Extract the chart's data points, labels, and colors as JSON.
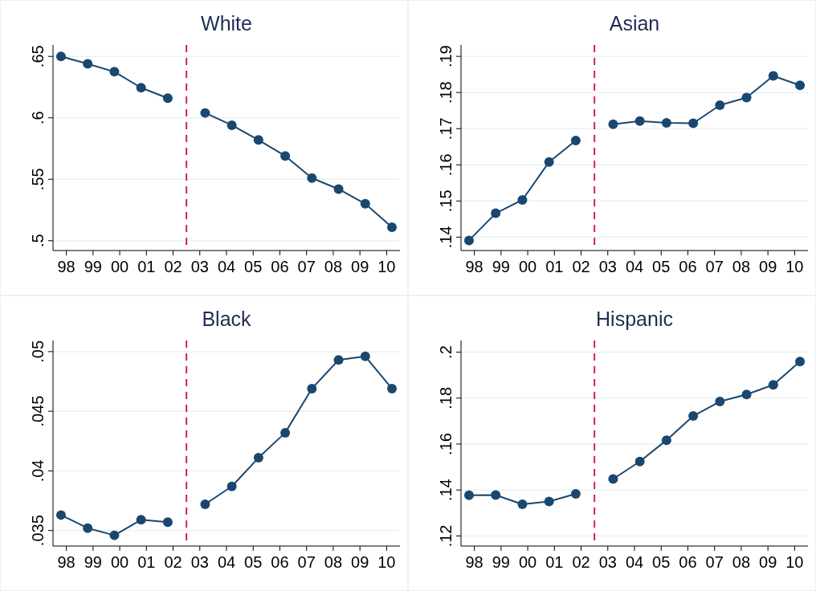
{
  "chart_data": [
    {
      "type": "line",
      "title": "White",
      "xlim": [
        1997.5,
        2010.5
      ],
      "xticks": [
        {
          "value": 1998,
          "label": "98"
        },
        {
          "value": 1999,
          "label": "99"
        },
        {
          "value": 2000,
          "label": "00"
        },
        {
          "value": 2001,
          "label": "01"
        },
        {
          "value": 2002,
          "label": "02"
        },
        {
          "value": 2003,
          "label": "03"
        },
        {
          "value": 2004,
          "label": "04"
        },
        {
          "value": 2005,
          "label": "05"
        },
        {
          "value": 2006,
          "label": "06"
        },
        {
          "value": 2007,
          "label": "07"
        },
        {
          "value": 2008,
          "label": "08"
        },
        {
          "value": 2009,
          "label": "09"
        },
        {
          "value": 2010,
          "label": "10"
        }
      ],
      "ylim": [
        0.492,
        0.658
      ],
      "yticks": [
        {
          "value": 0.5,
          "label": ".5"
        },
        {
          "value": 0.55,
          "label": ".55"
        },
        {
          "value": 0.6,
          "label": ".6"
        },
        {
          "value": 0.65,
          "label": ".65"
        }
      ],
      "grid": "y",
      "marker": "circle",
      "line_style": "solid",
      "ref_lines": [
        {
          "axis": "x",
          "value": 2002.5,
          "color": "#d6204b",
          "line_style": "dashed"
        }
      ],
      "series": [
        {
          "color": "#1a476f",
          "x": [
            1997.8,
            1998.8,
            1999.8,
            2000.8,
            2001.8
          ],
          "values": [
            0.65,
            0.644,
            0.6375,
            0.6245,
            0.616
          ]
        },
        {
          "color": "#1a476f",
          "x": [
            2003.2,
            2004.2,
            2005.2,
            2006.2,
            2007.2,
            2008.2,
            2009.2,
            2010.2
          ],
          "values": [
            0.604,
            0.594,
            0.582,
            0.569,
            0.551,
            0.542,
            0.53,
            0.511
          ]
        }
      ]
    },
    {
      "type": "line",
      "title": "Asian",
      "xlim": [
        1997.5,
        2010.5
      ],
      "xticks": [
        {
          "value": 1998,
          "label": "98"
        },
        {
          "value": 1999,
          "label": "99"
        },
        {
          "value": 2000,
          "label": "00"
        },
        {
          "value": 2001,
          "label": "01"
        },
        {
          "value": 2002,
          "label": "02"
        },
        {
          "value": 2003,
          "label": "03"
        },
        {
          "value": 2004,
          "label": "04"
        },
        {
          "value": 2005,
          "label": "05"
        },
        {
          "value": 2006,
          "label": "06"
        },
        {
          "value": 2007,
          "label": "07"
        },
        {
          "value": 2008,
          "label": "08"
        },
        {
          "value": 2009,
          "label": "09"
        },
        {
          "value": 2010,
          "label": "10"
        }
      ],
      "ylim": [
        0.1363,
        0.1927
      ],
      "yticks": [
        {
          "value": 0.14,
          "label": ".14"
        },
        {
          "value": 0.15,
          "label": ".15"
        },
        {
          "value": 0.16,
          "label": ".16"
        },
        {
          "value": 0.17,
          "label": ".17"
        },
        {
          "value": 0.18,
          "label": ".18"
        },
        {
          "value": 0.19,
          "label": ".19"
        }
      ],
      "grid": "y",
      "marker": "circle",
      "line_style": "solid",
      "ref_lines": [
        {
          "axis": "x",
          "value": 2002.5,
          "color": "#d6204b",
          "line_style": "dashed"
        }
      ],
      "series": [
        {
          "color": "#1a476f",
          "x": [
            1997.8,
            1998.8,
            1999.8,
            2000.8,
            2001.8
          ],
          "values": [
            0.1391,
            0.1466,
            0.1503,
            0.1608,
            0.1667
          ]
        },
        {
          "color": "#1a476f",
          "x": [
            2003.2,
            2004.2,
            2005.2,
            2006.2,
            2007.2,
            2008.2,
            2009.2,
            2010.2
          ],
          "values": [
            0.1712,
            0.1721,
            0.1716,
            0.1715,
            0.1765,
            0.1786,
            0.1846,
            0.182
          ]
        }
      ]
    },
    {
      "type": "line",
      "title": "Black",
      "xlim": [
        1997.5,
        2010.5
      ],
      "xticks": [
        {
          "value": 1998,
          "label": "98"
        },
        {
          "value": 1999,
          "label": "99"
        },
        {
          "value": 2000,
          "label": "00"
        },
        {
          "value": 2001,
          "label": "01"
        },
        {
          "value": 2002,
          "label": "02"
        },
        {
          "value": 2003,
          "label": "03"
        },
        {
          "value": 2004,
          "label": "04"
        },
        {
          "value": 2005,
          "label": "05"
        },
        {
          "value": 2006,
          "label": "06"
        },
        {
          "value": 2007,
          "label": "07"
        },
        {
          "value": 2008,
          "label": "08"
        },
        {
          "value": 2009,
          "label": "09"
        },
        {
          "value": 2010,
          "label": "10"
        }
      ],
      "ylim": [
        0.0337,
        0.0508
      ],
      "yticks": [
        {
          "value": 0.035,
          "label": ".035"
        },
        {
          "value": 0.04,
          "label": ".04"
        },
        {
          "value": 0.045,
          "label": ".045"
        },
        {
          "value": 0.05,
          "label": ".05"
        }
      ],
      "grid": "y",
      "marker": "circle",
      "line_style": "solid",
      "ref_lines": [
        {
          "axis": "x",
          "value": 2002.5,
          "color": "#d6204b",
          "line_style": "dashed"
        }
      ],
      "series": [
        {
          "color": "#1a476f",
          "x": [
            1997.8,
            1998.8,
            1999.8,
            2000.8,
            2001.8
          ],
          "values": [
            0.0363,
            0.0352,
            0.0346,
            0.0359,
            0.0357
          ]
        },
        {
          "color": "#1a476f",
          "x": [
            2003.2,
            2004.2,
            2005.2,
            2006.2,
            2007.2,
            2008.2,
            2009.2,
            2010.2
          ],
          "values": [
            0.0372,
            0.0387,
            0.0411,
            0.0432,
            0.0469,
            0.0493,
            0.0496,
            0.0469
          ]
        }
      ]
    },
    {
      "type": "line",
      "title": "Hispanic",
      "xlim": [
        1997.5,
        2010.5
      ],
      "xticks": [
        {
          "value": 1998,
          "label": "98"
        },
        {
          "value": 1999,
          "label": "99"
        },
        {
          "value": 2000,
          "label": "00"
        },
        {
          "value": 2001,
          "label": "01"
        },
        {
          "value": 2002,
          "label": "02"
        },
        {
          "value": 2003,
          "label": "03"
        },
        {
          "value": 2004,
          "label": "04"
        },
        {
          "value": 2005,
          "label": "05"
        },
        {
          "value": 2006,
          "label": "06"
        },
        {
          "value": 2007,
          "label": "07"
        },
        {
          "value": 2008,
          "label": "08"
        },
        {
          "value": 2009,
          "label": "09"
        },
        {
          "value": 2010,
          "label": "10"
        }
      ],
      "ylim": [
        0.1156,
        0.2044
      ],
      "yticks": [
        {
          "value": 0.12,
          "label": ".12"
        },
        {
          "value": 0.14,
          "label": ".14"
        },
        {
          "value": 0.16,
          "label": ".16"
        },
        {
          "value": 0.18,
          "label": ".18"
        },
        {
          "value": 0.2,
          "label": ".2"
        }
      ],
      "grid": "y",
      "marker": "circle",
      "line_style": "solid",
      "ref_lines": [
        {
          "axis": "x",
          "value": 2002.5,
          "color": "#d6204b",
          "line_style": "dashed"
        }
      ],
      "series": [
        {
          "color": "#1a476f",
          "x": [
            1997.8,
            1998.8,
            1999.8,
            2000.8,
            2001.8
          ],
          "values": [
            0.1377,
            0.1378,
            0.1338,
            0.135,
            0.1383
          ]
        },
        {
          "color": "#1a476f",
          "x": [
            2003.2,
            2004.2,
            2005.2,
            2006.2,
            2007.2,
            2008.2,
            2009.2,
            2010.2
          ],
          "values": [
            0.1448,
            0.1524,
            0.1617,
            0.1722,
            0.1785,
            0.1816,
            0.1858,
            0.1959
          ]
        }
      ]
    }
  ]
}
